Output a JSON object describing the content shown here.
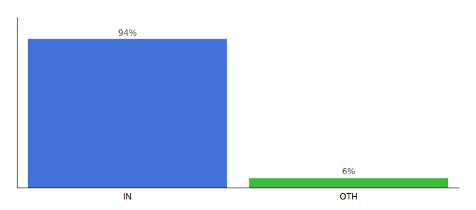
{
  "chart_data": {
    "type": "bar",
    "categories": [
      "IN",
      "OTH"
    ],
    "values": [
      94,
      6
    ],
    "value_labels": [
      "94%",
      "6%"
    ],
    "colors": [
      "#4472db",
      "#3dbb3d"
    ],
    "ylim": [
      0,
      108
    ],
    "data_labels": true,
    "tick_labels": "x",
    "grid": false
  }
}
